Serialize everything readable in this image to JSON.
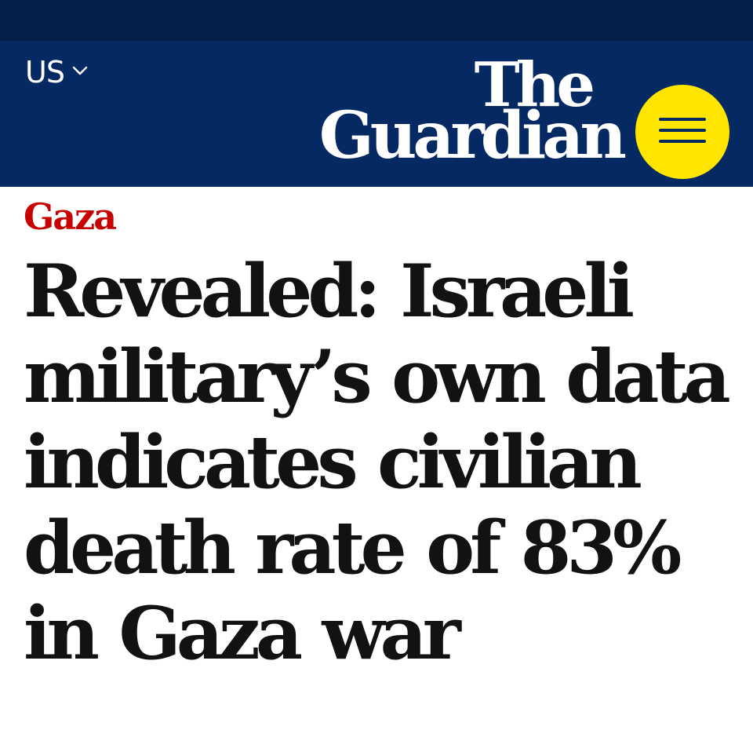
{
  "header": {
    "edition_label": "US",
    "logo_line1": "The",
    "logo_line2": "Guardian",
    "menu_icon": "hamburger-menu-icon",
    "colors": {
      "brand_blue": "#052962",
      "top_strip": "#041f4a",
      "menu_yellow": "#ffe500"
    }
  },
  "article": {
    "kicker": "Gaza",
    "headline": "Revealed: Israeli military’s own data indicates civilian death rate of 83% in Gaza war",
    "colors": {
      "kicker_red": "#c70000",
      "headline_text": "#121212"
    }
  }
}
